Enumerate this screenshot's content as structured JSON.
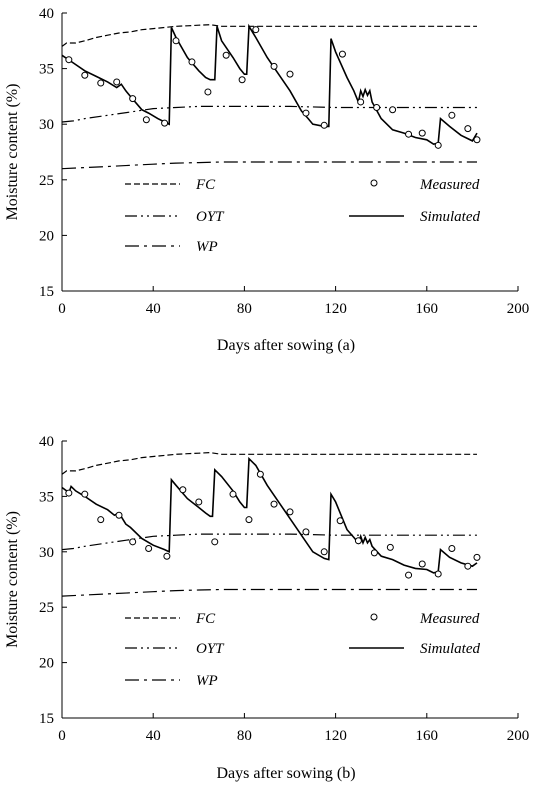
{
  "chart_data": [
    {
      "type": "line",
      "xlabel": "Days after sowing (a)",
      "ylabel": "Moisture content (%)",
      "xlim": [
        0,
        200
      ],
      "ylim": [
        15,
        40
      ],
      "xticks": [
        0,
        40,
        80,
        120,
        160,
        200
      ],
      "yticks": [
        15,
        20,
        25,
        30,
        35,
        40
      ],
      "grid": false,
      "legend": [
        {
          "key": "fc",
          "label": "FC"
        },
        {
          "key": "measured",
          "label": "Measured"
        },
        {
          "key": "oyt",
          "label": "OYT"
        },
        {
          "key": "simulated",
          "label": "Simulated"
        },
        {
          "key": "wp",
          "label": "WP"
        }
      ],
      "series": [
        {
          "key": "fc",
          "name": "FC",
          "style": "dashed",
          "x": [
            0,
            2,
            6,
            10,
            15,
            20,
            25,
            30,
            35,
            40,
            45,
            50,
            55,
            60,
            65,
            70,
            80,
            100,
            120,
            140,
            160,
            182
          ],
          "y": [
            37.0,
            37.3,
            37.3,
            37.5,
            37.8,
            38.0,
            38.2,
            38.3,
            38.5,
            38.6,
            38.7,
            38.8,
            38.85,
            38.9,
            38.95,
            38.8,
            38.8,
            38.8,
            38.8,
            38.8,
            38.8,
            38.8
          ]
        },
        {
          "key": "oyt",
          "name": "OYT",
          "style": "dash-dot-dot",
          "x": [
            0,
            5,
            10,
            20,
            30,
            40,
            50,
            60,
            70,
            80,
            100,
            120,
            140,
            160,
            182
          ],
          "y": [
            30.2,
            30.3,
            30.5,
            30.8,
            31.1,
            31.4,
            31.5,
            31.6,
            31.6,
            31.6,
            31.6,
            31.5,
            31.5,
            31.5,
            31.5
          ]
        },
        {
          "key": "wp",
          "name": "WP",
          "style": "dash-dot",
          "x": [
            0,
            10,
            20,
            30,
            40,
            50,
            60,
            70,
            80,
            100,
            120,
            140,
            160,
            182
          ],
          "y": [
            26.0,
            26.1,
            26.2,
            26.3,
            26.4,
            26.5,
            26.55,
            26.6,
            26.6,
            26.6,
            26.6,
            26.6,
            26.6,
            26.6
          ]
        },
        {
          "key": "simulated",
          "name": "Simulated",
          "style": "solid",
          "x": [
            0,
            5,
            10,
            15,
            20,
            24,
            26,
            28,
            30,
            35,
            38,
            42,
            45,
            47,
            48,
            50,
            55,
            60,
            63,
            65,
            67,
            68,
            70,
            75,
            78,
            80,
            81,
            82,
            85,
            90,
            95,
            100,
            105,
            108,
            110,
            115,
            117,
            118,
            120,
            125,
            128,
            130,
            131,
            132,
            133,
            134,
            135,
            136,
            140,
            145,
            150,
            155,
            160,
            163,
            165,
            166,
            170,
            175,
            180,
            182
          ],
          "y": [
            36.2,
            35.5,
            34.8,
            34.3,
            33.8,
            33.3,
            33.6,
            33.0,
            32.5,
            31.3,
            31.0,
            30.5,
            30.2,
            30.0,
            38.7,
            37.8,
            36.0,
            34.8,
            34.2,
            34.0,
            34.0,
            38.8,
            37.5,
            36.0,
            35.0,
            34.5,
            34.5,
            38.8,
            37.8,
            36.0,
            34.5,
            33.0,
            31.2,
            30.5,
            30.0,
            29.8,
            29.8,
            37.7,
            36.5,
            34.2,
            33.0,
            32.0,
            33.0,
            32.5,
            33.1,
            32.6,
            33.0,
            32.0,
            30.5,
            29.5,
            29.2,
            28.8,
            28.6,
            28.2,
            28.3,
            30.5,
            29.8,
            29.0,
            28.5,
            29.2
          ]
        },
        {
          "key": "measured",
          "name": "Measured",
          "style": "circle",
          "x": [
            3,
            10,
            17,
            24,
            31,
            37,
            45,
            50,
            57,
            64,
            72,
            79,
            85,
            93,
            100,
            107,
            115,
            123,
            131,
            138,
            145,
            152,
            158,
            165,
            171,
            178,
            182
          ],
          "y": [
            35.8,
            34.4,
            33.7,
            33.8,
            32.3,
            30.4,
            30.1,
            37.5,
            35.6,
            32.9,
            36.2,
            34.0,
            38.5,
            35.2,
            34.5,
            31.0,
            29.9,
            36.3,
            32.0,
            31.5,
            31.3,
            29.1,
            29.2,
            28.1,
            30.8,
            29.6,
            28.6
          ]
        }
      ]
    },
    {
      "type": "line",
      "xlabel": "Days after sowing (b)",
      "ylabel": "Moisture content (%)",
      "xlim": [
        0,
        200
      ],
      "ylim": [
        15,
        40
      ],
      "xticks": [
        0,
        40,
        80,
        120,
        160,
        200
      ],
      "yticks": [
        15,
        20,
        25,
        30,
        35,
        40
      ],
      "grid": false,
      "legend": [
        {
          "key": "fc",
          "label": "FC"
        },
        {
          "key": "measured",
          "label": "Measured"
        },
        {
          "key": "oyt",
          "label": "OYT"
        },
        {
          "key": "simulated",
          "label": "Simulated"
        },
        {
          "key": "wp",
          "label": "WP"
        }
      ],
      "series": [
        {
          "key": "fc",
          "name": "FC",
          "style": "dashed",
          "x": [
            0,
            2,
            6,
            10,
            15,
            20,
            25,
            30,
            35,
            40,
            45,
            50,
            55,
            60,
            65,
            70,
            80,
            100,
            120,
            140,
            160,
            182
          ],
          "y": [
            37.0,
            37.3,
            37.3,
            37.5,
            37.8,
            38.0,
            38.2,
            38.3,
            38.5,
            38.6,
            38.7,
            38.8,
            38.85,
            38.9,
            38.95,
            38.8,
            38.8,
            38.8,
            38.8,
            38.8,
            38.8,
            38.8
          ]
        },
        {
          "key": "oyt",
          "name": "OYT",
          "style": "dash-dot-dot",
          "x": [
            0,
            5,
            10,
            20,
            30,
            40,
            50,
            60,
            70,
            80,
            100,
            120,
            140,
            160,
            182
          ],
          "y": [
            30.2,
            30.3,
            30.5,
            30.8,
            31.1,
            31.4,
            31.5,
            31.6,
            31.6,
            31.6,
            31.6,
            31.5,
            31.5,
            31.5,
            31.5
          ]
        },
        {
          "key": "wp",
          "name": "WP",
          "style": "dash-dot",
          "x": [
            0,
            10,
            20,
            30,
            40,
            50,
            60,
            70,
            80,
            100,
            120,
            140,
            160,
            182
          ],
          "y": [
            26.0,
            26.1,
            26.2,
            26.3,
            26.4,
            26.5,
            26.55,
            26.6,
            26.6,
            26.6,
            26.6,
            26.6,
            26.6,
            26.6
          ]
        },
        {
          "key": "simulated",
          "name": "Simulated",
          "style": "solid",
          "x": [
            0,
            2,
            3,
            4,
            6,
            10,
            15,
            20,
            23,
            25,
            28,
            30,
            35,
            40,
            45,
            47,
            48,
            50,
            55,
            60,
            63,
            65,
            66,
            67,
            70,
            75,
            78,
            80,
            81,
            82,
            85,
            90,
            95,
            100,
            105,
            110,
            115,
            117,
            118,
            120,
            125,
            128,
            130,
            131,
            132,
            133,
            134,
            135,
            136,
            140,
            145,
            150,
            155,
            160,
            163,
            165,
            166,
            170,
            175,
            180,
            182
          ],
          "y": [
            35.8,
            35.5,
            35.3,
            35.9,
            35.5,
            35.0,
            34.3,
            33.8,
            33.3,
            33.5,
            32.5,
            32.2,
            31.2,
            30.6,
            30.2,
            30.0,
            36.5,
            36.0,
            34.8,
            34.0,
            33.5,
            33.2,
            33.2,
            37.4,
            36.8,
            35.5,
            34.5,
            34.0,
            34.0,
            38.4,
            37.8,
            36.0,
            34.5,
            33.0,
            31.5,
            30.0,
            29.4,
            29.3,
            35.2,
            34.5,
            32.0,
            31.3,
            30.8,
            31.4,
            30.8,
            31.3,
            30.8,
            31.1,
            30.5,
            29.6,
            29.3,
            28.8,
            28.5,
            28.4,
            28.1,
            28.2,
            30.2,
            29.5,
            29.0,
            28.7,
            29.0
          ]
        },
        {
          "key": "measured",
          "name": "Measured",
          "style": "circle",
          "x": [
            3,
            10,
            17,
            25,
            31,
            38,
            46,
            53,
            60,
            67,
            75,
            82,
            87,
            93,
            100,
            107,
            115,
            122,
            130,
            137,
            144,
            152,
            158,
            165,
            171,
            178,
            182
          ],
          "y": [
            35.3,
            35.2,
            32.9,
            33.3,
            30.9,
            30.3,
            29.6,
            35.6,
            34.5,
            30.9,
            35.2,
            32.9,
            37.0,
            34.3,
            33.6,
            31.8,
            30.0,
            32.8,
            31.0,
            29.9,
            30.4,
            27.9,
            28.9,
            28.0,
            30.3,
            28.7,
            29.5
          ]
        }
      ]
    }
  ]
}
